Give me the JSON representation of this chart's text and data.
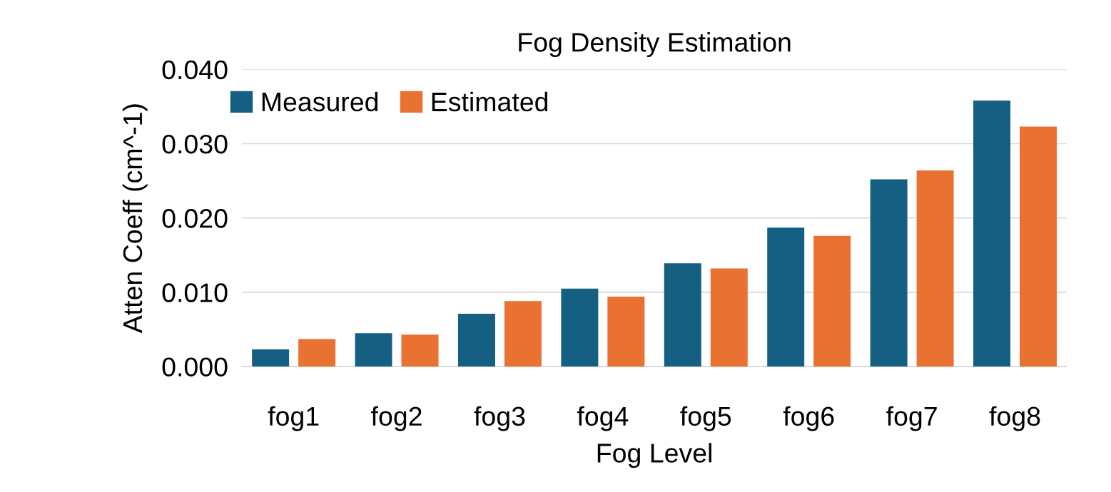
{
  "chart_data": {
    "type": "bar",
    "title": "Fog Density Estimation",
    "xlabel": "Fog Level",
    "ylabel": "Atten Coeff (cm^-1)",
    "categories": [
      "fog1",
      "fog2",
      "fog3",
      "fog4",
      "fog5",
      "fog6",
      "fog7",
      "fog8"
    ],
    "series": [
      {
        "name": "Measured",
        "color": "#156082",
        "values": [
          0.0023,
          0.0045,
          0.0071,
          0.0105,
          0.0139,
          0.0187,
          0.0252,
          0.0358
        ]
      },
      {
        "name": "Estimated",
        "color": "#e97132",
        "values": [
          0.0037,
          0.0043,
          0.0088,
          0.0094,
          0.0132,
          0.0176,
          0.0264,
          0.0323
        ]
      }
    ],
    "ylim": [
      0,
      0.04
    ],
    "yticks": [
      {
        "value": 0,
        "label": "0.000"
      },
      {
        "value": 0.01,
        "label": "0.010"
      },
      {
        "value": 0.02,
        "label": "0.020"
      },
      {
        "value": 0.03,
        "label": "0.030"
      },
      {
        "value": 0.04,
        "label": "0.040"
      }
    ],
    "grid": "y",
    "legend": "top left"
  }
}
